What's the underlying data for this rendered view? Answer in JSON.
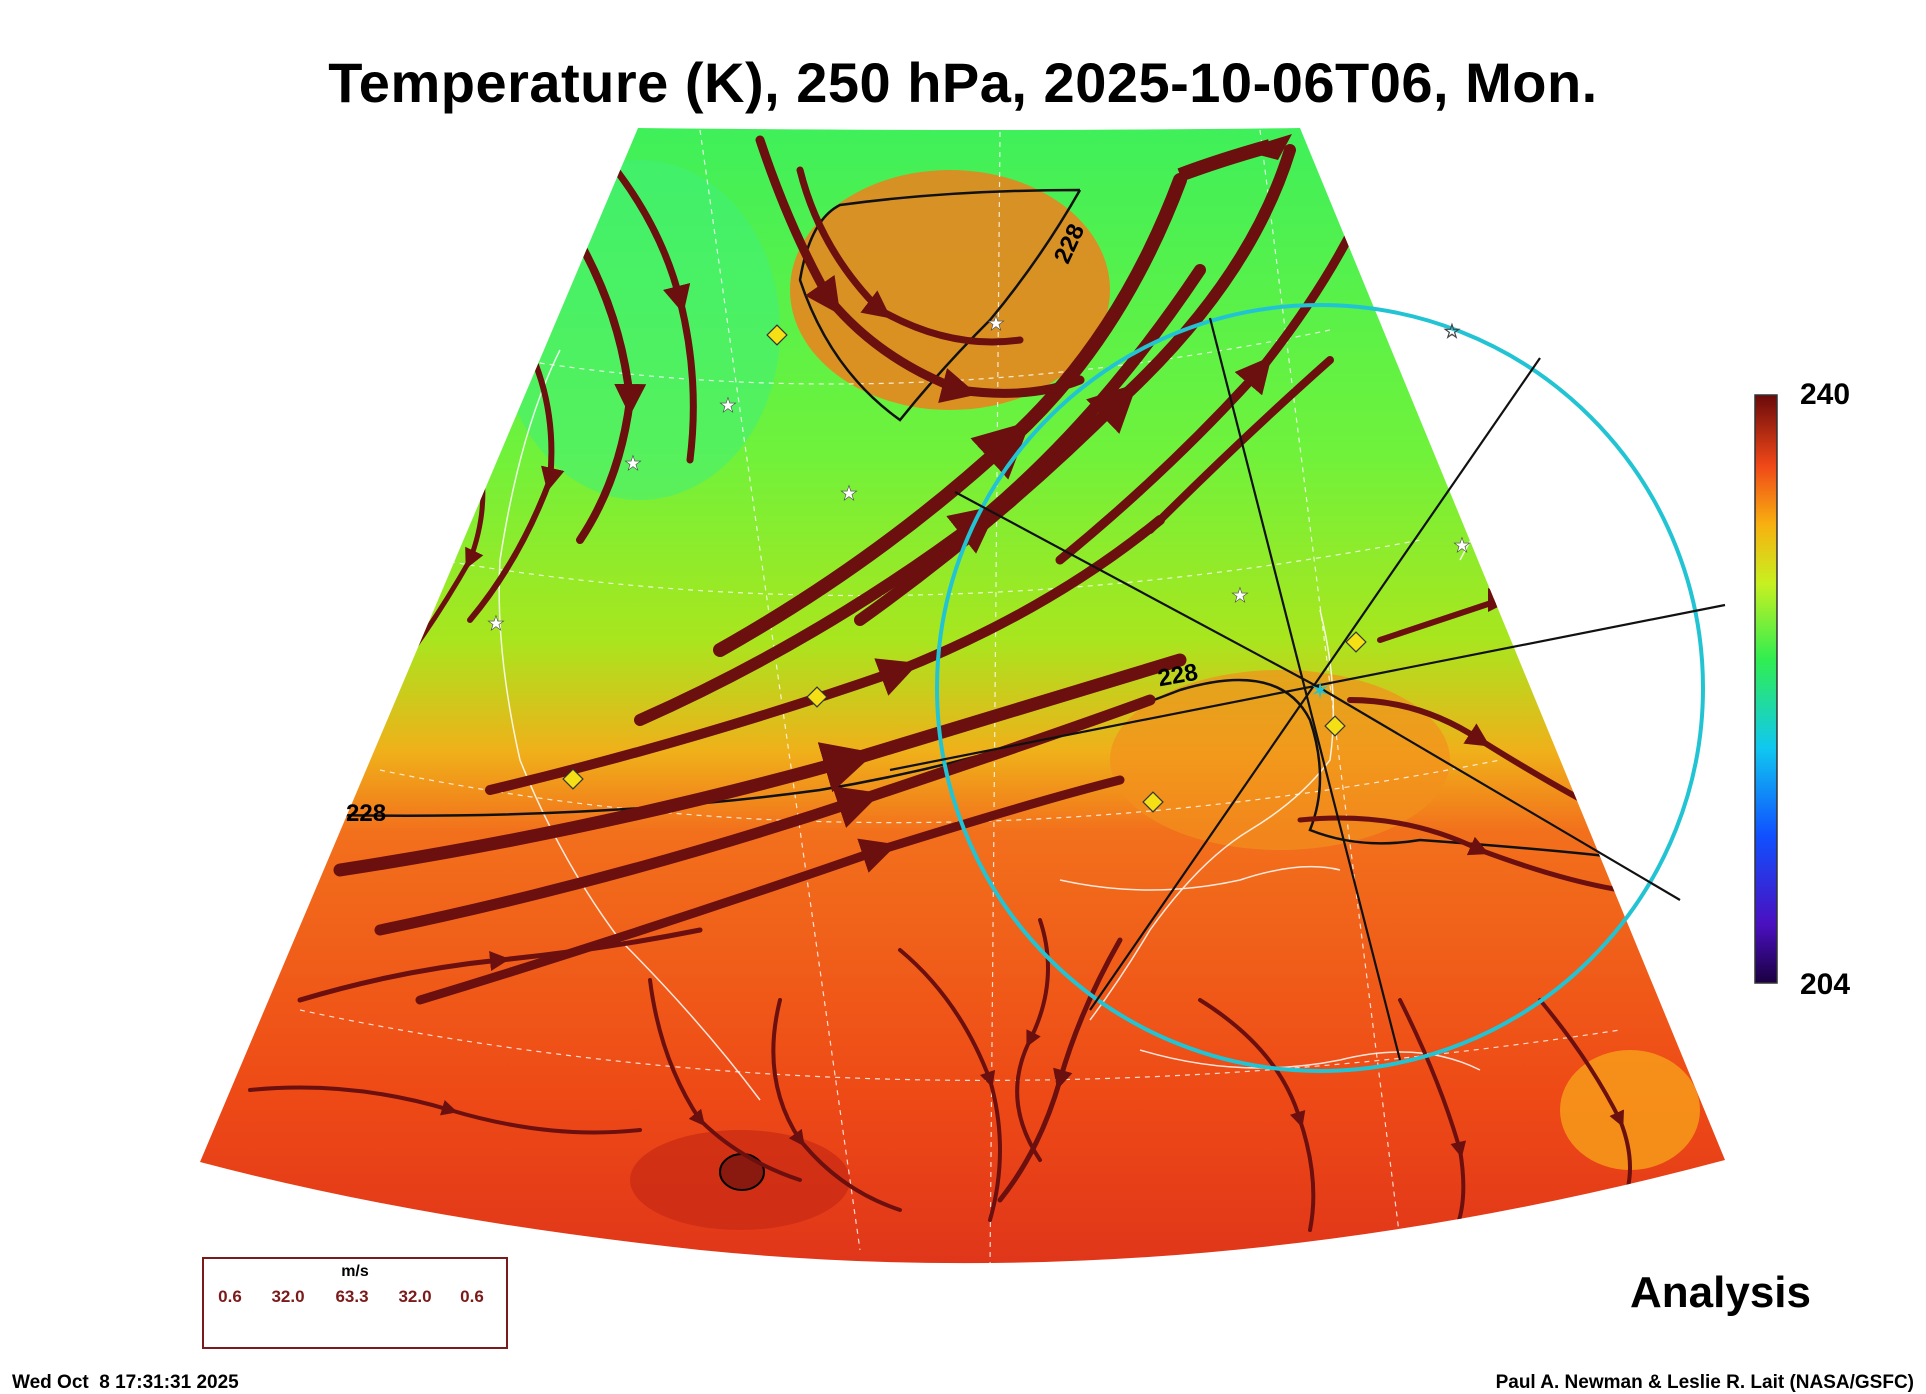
{
  "title": "Temperature (K), 250 hPa, 2025-10-06T06, Mon.",
  "colorbar": {
    "max_label": "240",
    "min_label": "204",
    "colormap": "rainbow"
  },
  "contour_labels": [
    "228",
    "228",
    "228"
  ],
  "label_analysis": "Analysis",
  "legend": {
    "unit": "m/s",
    "values": [
      "0.6",
      "32.0",
      "63.3",
      "32.0",
      "0.6"
    ]
  },
  "footer": {
    "timestamp": "Wed Oct  8 17:31:31 2025",
    "credit": "Paul A. Newman & Leslie R. Lait (NASA/GSFC)"
  },
  "colors": {
    "streamline": "#6b0f0f",
    "ring": "#22c4d4",
    "warm": "#f05a1e",
    "cool": "#4cee52"
  }
}
